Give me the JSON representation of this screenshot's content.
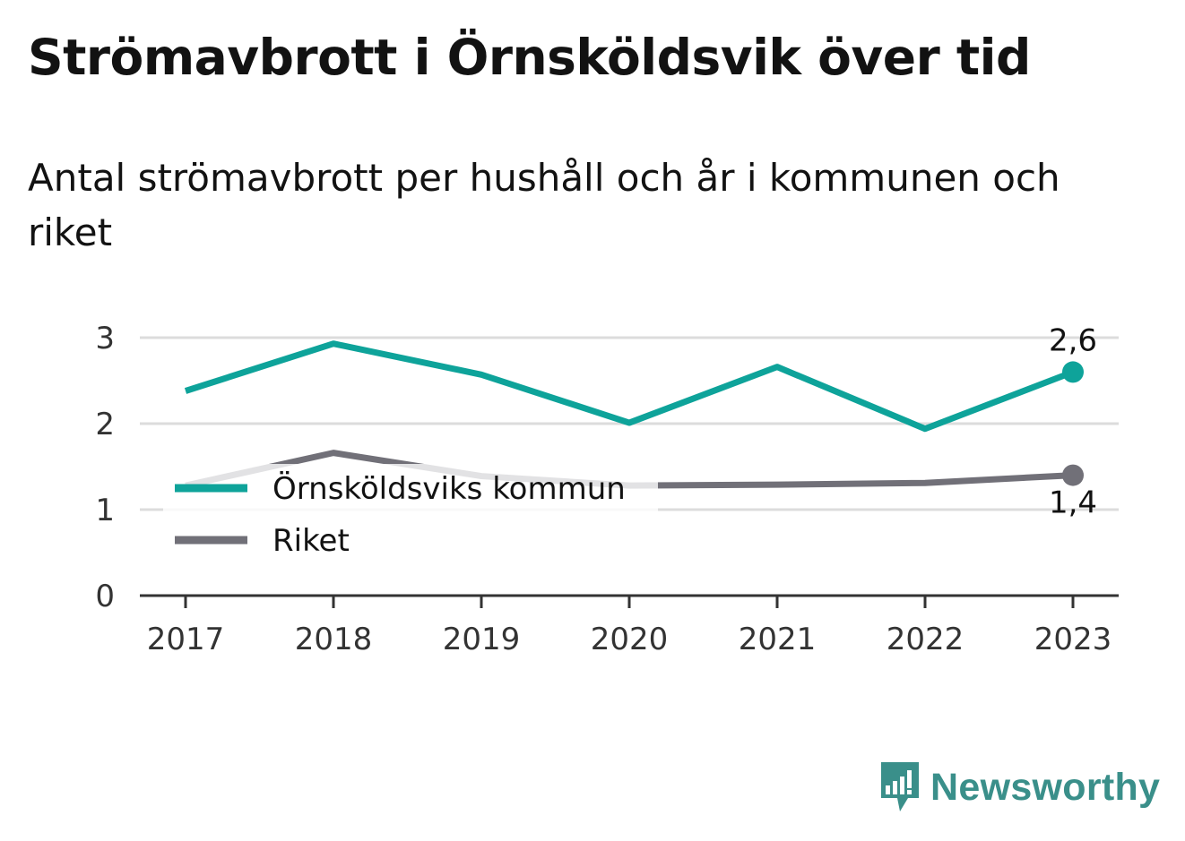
{
  "title": "Strömavbrott i Örnsköldsvik över tid",
  "subtitle": "Antal strömavbrott per hushåll och år i kommunen och riket",
  "brand": "Newsworthy",
  "chart_data": {
    "type": "line",
    "x": [
      "2017",
      "2018",
      "2019",
      "2020",
      "2021",
      "2022",
      "2023"
    ],
    "ylim": [
      0,
      3
    ],
    "yticks": [
      "0",
      "1",
      "2",
      "3"
    ],
    "grid": true,
    "legend_position": "left",
    "series": [
      {
        "name": "Örnsköldsviks kommun",
        "color": "#0ea39a",
        "values": [
          2.38,
          2.93,
          2.57,
          2.01,
          2.66,
          1.94,
          2.6
        ],
        "end_label": "2,6"
      },
      {
        "name": "Riket",
        "color": "#717078",
        "values": [
          1.28,
          1.66,
          1.39,
          1.28,
          1.29,
          1.31,
          1.4
        ],
        "end_label": "1,4"
      }
    ]
  }
}
